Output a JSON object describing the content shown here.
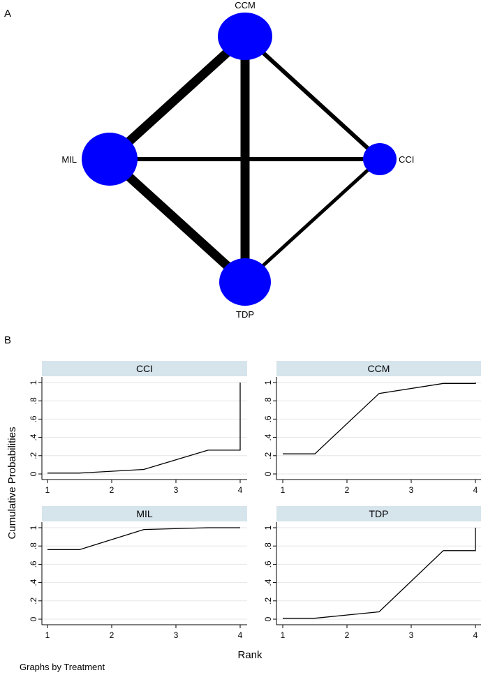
{
  "panel_a": {
    "letter": "A",
    "node_color": "#0000ff",
    "edge_color": "#000000",
    "nodes": [
      {
        "id": "CCM",
        "label": "CCM"
      },
      {
        "id": "MIL",
        "label": "MIL"
      },
      {
        "id": "CCI",
        "label": "CCI"
      },
      {
        "id": "TDP",
        "label": "TDP"
      }
    ],
    "edges": [
      {
        "from": "CCM",
        "to": "MIL"
      },
      {
        "from": "CCM",
        "to": "TDP"
      },
      {
        "from": "CCM",
        "to": "CCI"
      },
      {
        "from": "MIL",
        "to": "CCI"
      },
      {
        "from": "MIL",
        "to": "TDP"
      },
      {
        "from": "CCI",
        "to": "TDP"
      }
    ]
  },
  "panel_b": {
    "letter": "B",
    "xlabel": "Rank",
    "ylabel": "Cumulative Probabilities",
    "note": "Graphs by Treatment",
    "strip_color": "#d6e4ec"
  },
  "chart_data": {
    "type": "line",
    "x_ticks": [
      1,
      2,
      3,
      4
    ],
    "y_ticks": [
      0,
      0.2,
      0.4,
      0.6,
      0.8,
      1
    ],
    "y_tick_labels": [
      "0",
      ".2",
      ".4",
      ".6",
      ".8",
      "1"
    ],
    "xlim": [
      1,
      4
    ],
    "ylim": [
      0,
      1
    ],
    "grid": "horizontal",
    "panels": [
      {
        "title": "CCI",
        "x": [
          1,
          1.5,
          2.5,
          3.5,
          4,
          4
        ],
        "y": [
          0.01,
          0.01,
          0.05,
          0.26,
          0.26,
          1.0
        ]
      },
      {
        "title": "CCM",
        "x": [
          1,
          1.5,
          2.5,
          3.5,
          4,
          4
        ],
        "y": [
          0.22,
          0.22,
          0.88,
          0.99,
          0.99,
          1.0
        ]
      },
      {
        "title": "MIL",
        "x": [
          1,
          1.5,
          2.5,
          3.5,
          4
        ],
        "y": [
          0.76,
          0.76,
          0.98,
          1.0,
          1.0
        ]
      },
      {
        "title": "TDP",
        "x": [
          1,
          1.5,
          2.5,
          3.5,
          4,
          4
        ],
        "y": [
          0.01,
          0.01,
          0.08,
          0.75,
          0.75,
          1.0
        ]
      }
    ]
  }
}
